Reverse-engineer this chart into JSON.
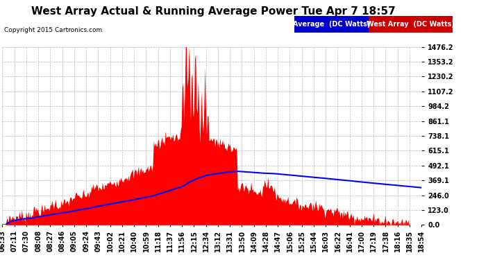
{
  "title": "West Array Actual & Running Average Power Tue Apr 7 18:57",
  "copyright": "Copyright 2015 Cartronics.com",
  "legend_labels": [
    "Average  (DC Watts)",
    "West Array  (DC Watts)"
  ],
  "yticks": [
    0.0,
    123.0,
    246.0,
    369.1,
    492.1,
    615.1,
    738.1,
    861.1,
    984.2,
    1107.2,
    1230.2,
    1353.2,
    1476.2
  ],
  "ymax": 1476.2,
  "ymin": 0.0,
  "bg_color": "#ffffff",
  "grid_color": "#bbbbbb",
  "fill_color": "#ff0000",
  "line_color": "#0000ff",
  "legend_avg_bg": "#0000cc",
  "legend_west_bg": "#cc0000",
  "title_fontsize": 11,
  "tick_fontsize": 7,
  "x_labels": [
    "06:33",
    "07:11",
    "07:30",
    "08:08",
    "08:27",
    "08:46",
    "09:05",
    "09:24",
    "09:43",
    "10:02",
    "10:21",
    "10:40",
    "10:59",
    "11:18",
    "11:37",
    "11:56",
    "12:15",
    "12:34",
    "13:12",
    "13:31",
    "13:50",
    "14:09",
    "14:28",
    "14:47",
    "15:06",
    "15:25",
    "15:44",
    "16:03",
    "16:22",
    "16:41",
    "17:00",
    "17:19",
    "17:38",
    "18:16",
    "18:35",
    "18:54"
  ]
}
